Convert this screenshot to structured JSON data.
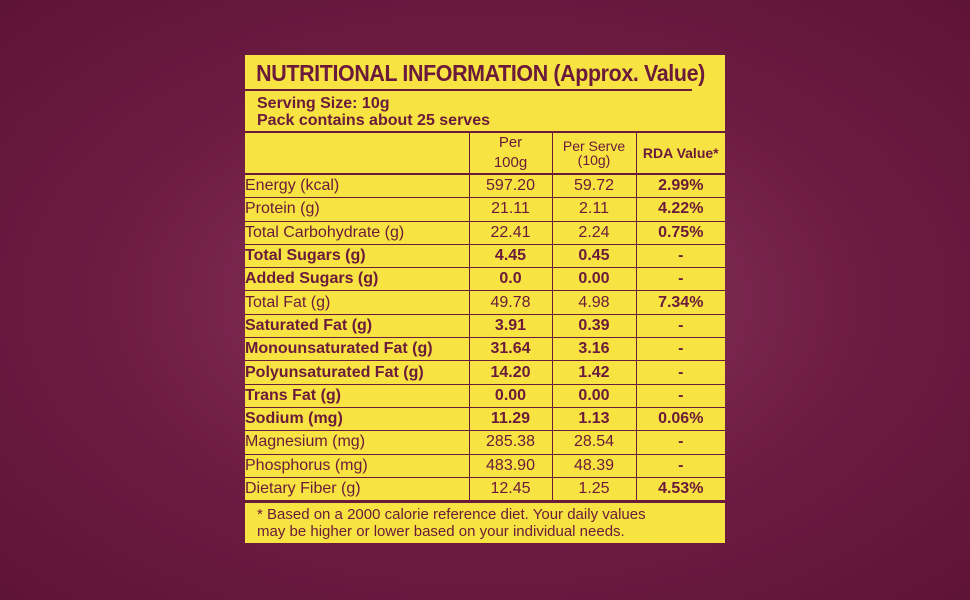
{
  "panel": {
    "title": "NUTRITIONAL INFORMATION (Approx. Value)",
    "serving_size": "Serving Size: 10g",
    "pack_contains": "Pack contains about 25 serves",
    "headers": {
      "per100_line1": "Per",
      "per100_line2": "100g",
      "perserve_line1": "Per Serve",
      "perserve_line2": "(10g)",
      "rda": "RDA Value*"
    },
    "rows": [
      {
        "name": "Energy (kcal)",
        "per100": "597.20",
        "perserve": "59.72",
        "rda": "2.99%"
      },
      {
        "name": "Protein (g)",
        "per100": "21.11",
        "perserve": "2.11",
        "rda": "4.22%"
      },
      {
        "name": "Total Carbohydrate (g)",
        "per100": "22.41",
        "perserve": "2.24",
        "rda": "0.75%"
      },
      {
        "name": "Total Sugars (g)",
        "per100": "4.45",
        "perserve": "0.45",
        "rda": "-"
      },
      {
        "name": "Added Sugars (g)",
        "per100": "0.0",
        "perserve": "0.00",
        "rda": "-"
      },
      {
        "name": "Total Fat (g)",
        "per100": "49.78",
        "perserve": "4.98",
        "rda": "7.34%"
      },
      {
        "name": "Saturated Fat (g)",
        "per100": "3.91",
        "perserve": "0.39",
        "rda": "-"
      },
      {
        "name": "Monounsaturated Fat (g)",
        "per100": "31.64",
        "perserve": "3.16",
        "rda": "-"
      },
      {
        "name": "Polyunsaturated Fat (g)",
        "per100": "14.20",
        "perserve": "1.42",
        "rda": "-"
      },
      {
        "name": "Trans Fat (g)",
        "per100": "0.00",
        "perserve": "0.00",
        "rda": "-"
      },
      {
        "name": "Sodium (mg)",
        "per100": "11.29",
        "perserve": "1.13",
        "rda": "0.06%"
      },
      {
        "name": "Magnesium (mg)",
        "per100": "285.38",
        "perserve": "28.54",
        "rda": "-"
      },
      {
        "name": "Phosphorus (mg)",
        "per100": "483.90",
        "perserve": "48.39",
        "rda": "-"
      },
      {
        "name": "Dietary Fiber (g)",
        "per100": "12.45",
        "perserve": "1.25",
        "rda": "4.53%"
      }
    ],
    "footnote_line1": "* Based on a 2000 calorie reference diet. Your daily values",
    "footnote_line2": "may be higher or lower based on your individual needs."
  },
  "colors": {
    "background": "#6e1b42",
    "panel": "#f7e341",
    "text": "#6a1a3a"
  }
}
